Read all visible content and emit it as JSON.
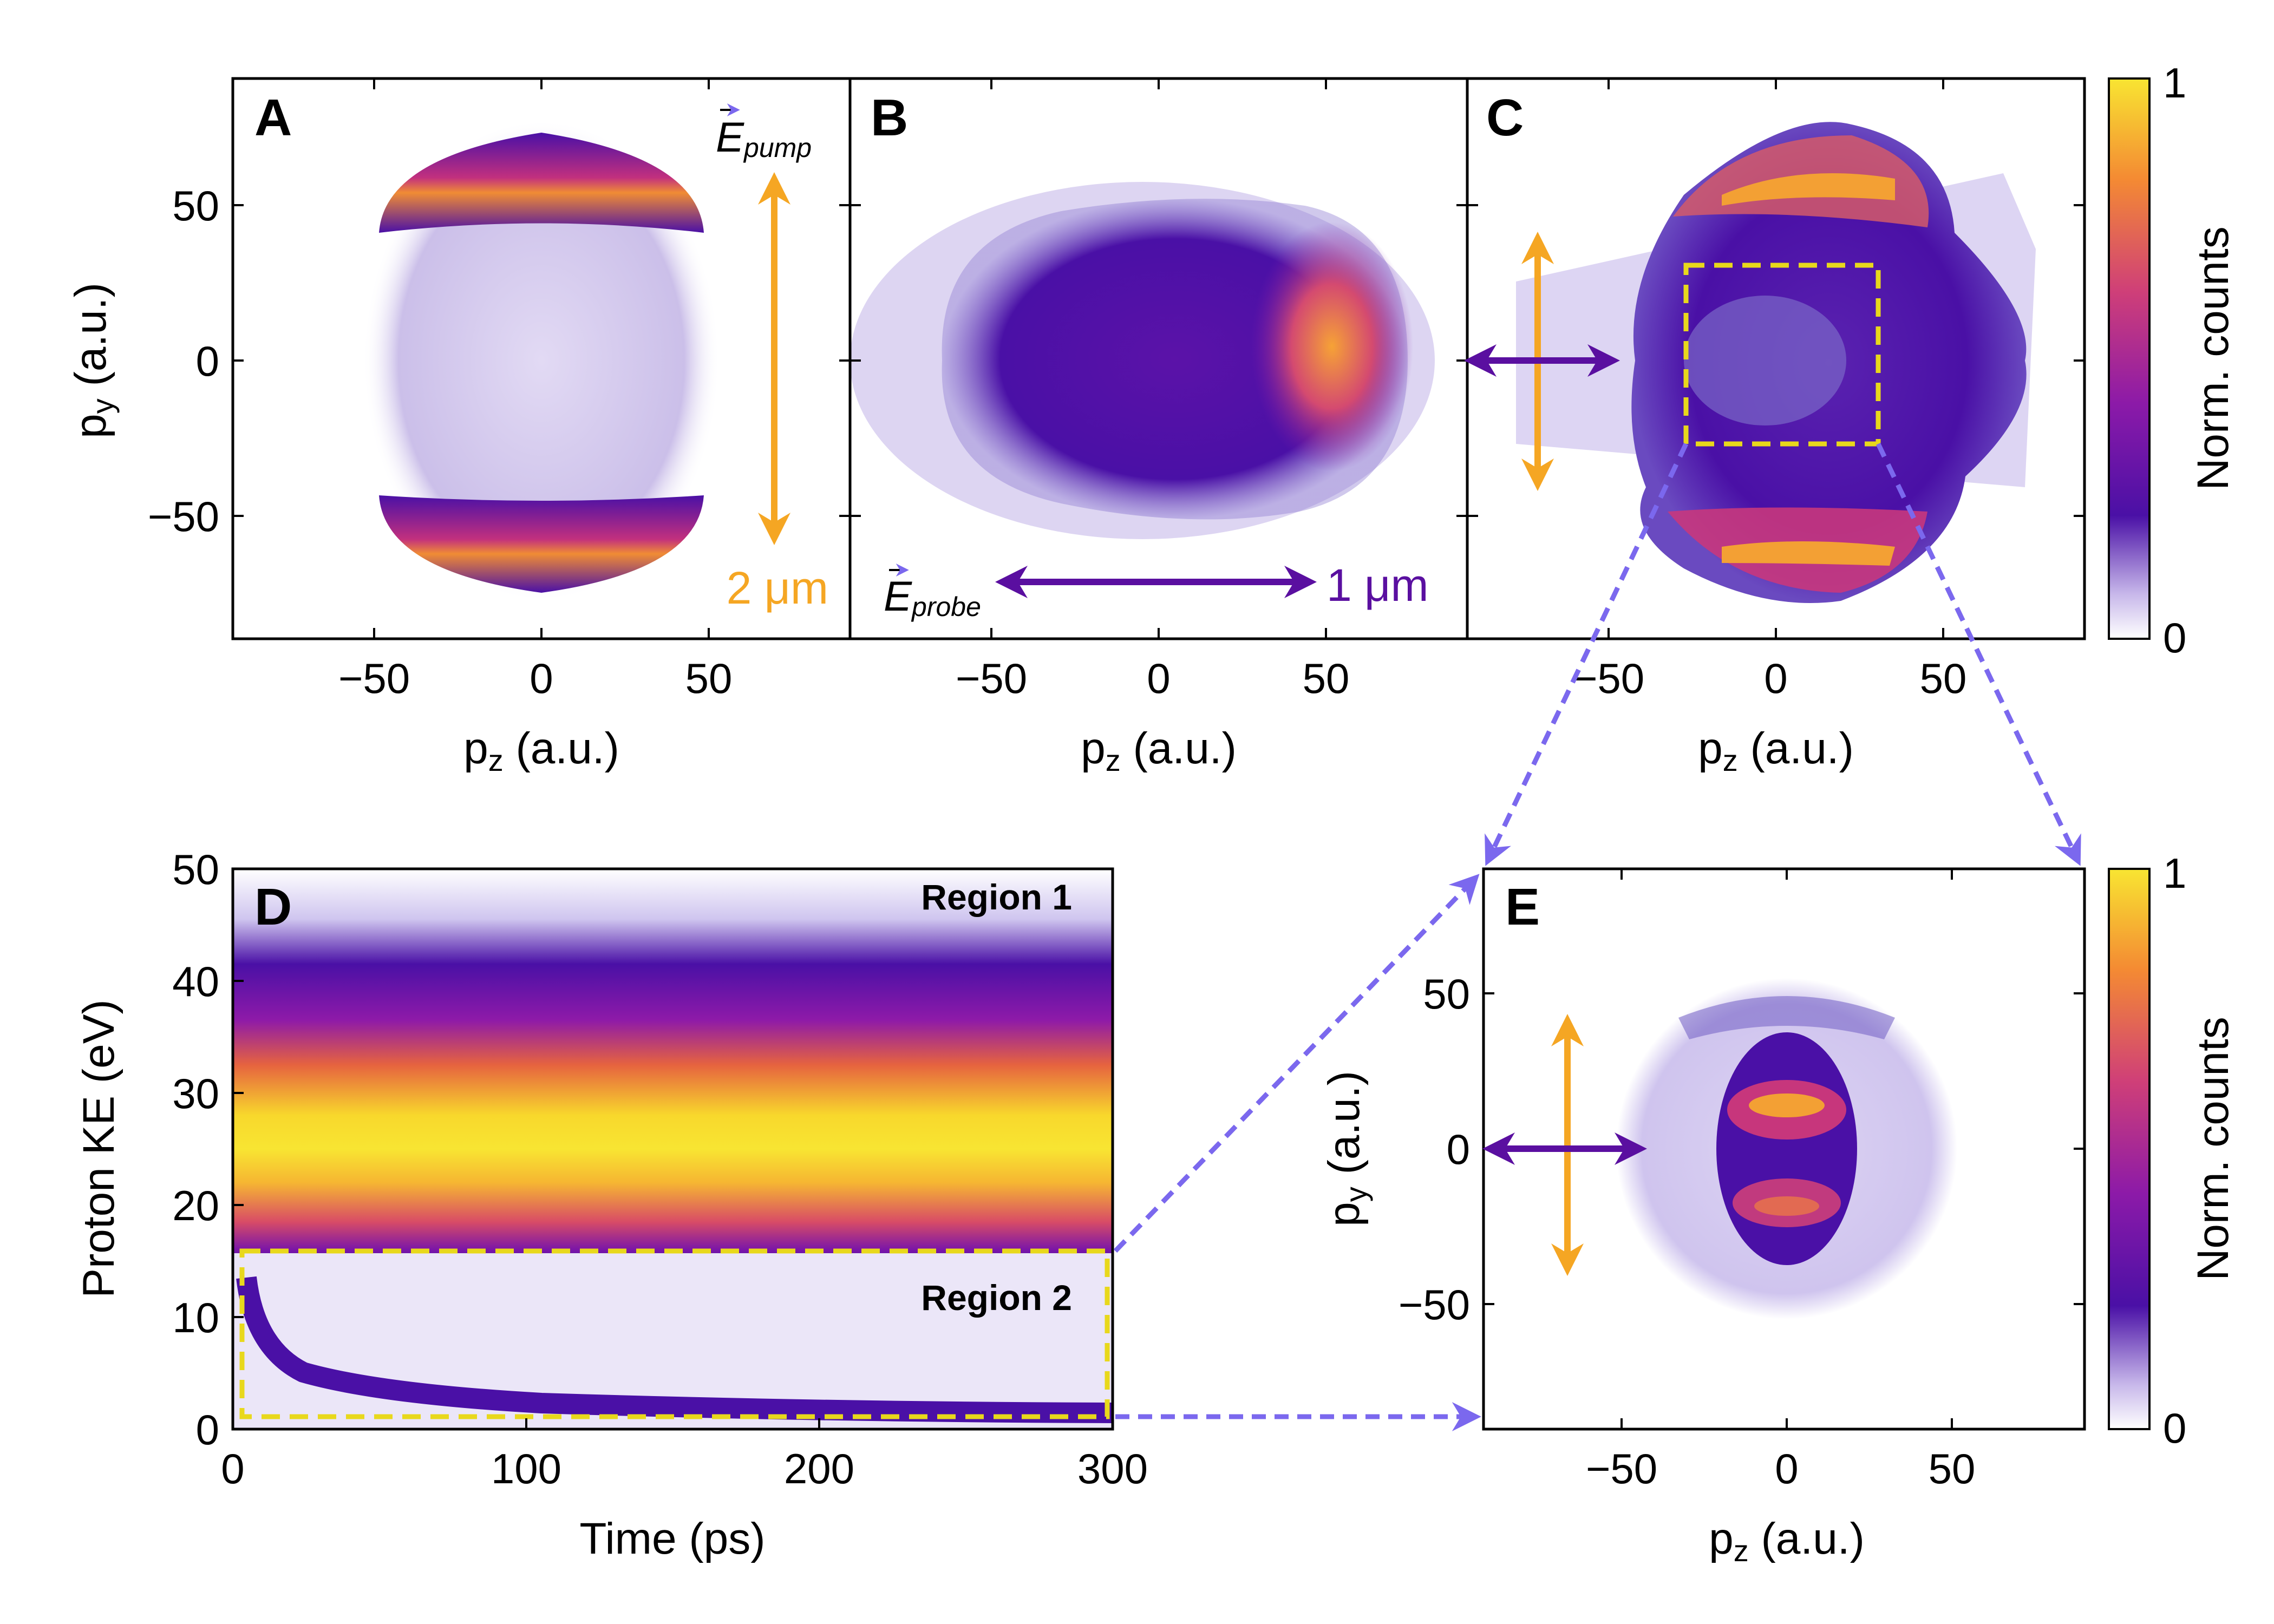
{
  "colors": {
    "pump": "#f5a623",
    "probe": "#5a0fa0",
    "roi": "#e8d81c",
    "connector": "#7b68ee",
    "cmap": [
      "#ffffff",
      "#c7b7ea",
      "#4a10a6",
      "#8c1aa8",
      "#cf3f78",
      "#f48a33",
      "#f8e532"
    ]
  },
  "chart_data": [
    {
      "panel": "A",
      "type": "heatmap",
      "xlabel_base": "p",
      "xlabel_sub": "z",
      "xlabel_unit": " (a.u.)",
      "ylabel_base": "p",
      "ylabel_sub": "y",
      "ylabel_unit": " (a.u.)",
      "xlim": [
        -90,
        90
      ],
      "ylim": [
        -90,
        90
      ],
      "xticks": [
        -50,
        0,
        50
      ],
      "yticks": [
        -50,
        0,
        50
      ],
      "tick_labels_x": [
        "−50",
        "0",
        "50"
      ],
      "tick_labels_y": [
        "−50",
        "0",
        "50"
      ],
      "description_annotations": {
        "field_label_base": "E",
        "field_label_sub": "pump",
        "wavelength": "2 μm"
      }
    },
    {
      "panel": "B",
      "type": "heatmap",
      "xlabel_base": "p",
      "xlabel_sub": "z",
      "xlabel_unit": " (a.u.)",
      "xlim": [
        -90,
        90
      ],
      "ylim": [
        -90,
        90
      ],
      "xticks": [
        -50,
        0,
        50
      ],
      "tick_labels_x": [
        "−50",
        "0",
        "50"
      ],
      "description_annotations": {
        "field_label_base": "E",
        "field_label_sub": "probe",
        "wavelength": "1 μm"
      }
    },
    {
      "panel": "C",
      "type": "heatmap",
      "xlabel_base": "p",
      "xlabel_sub": "z",
      "xlabel_unit": " (a.u.)",
      "xlim": [
        -90,
        90
      ],
      "ylim": [
        -90,
        90
      ],
      "xticks": [
        -50,
        0,
        50
      ],
      "tick_labels_x": [
        "−50",
        "0",
        "50"
      ],
      "roi": {
        "x": [
          -30,
          30
        ],
        "y": [
          -25,
          30
        ]
      },
      "colorbar": {
        "label": "Norm. counts",
        "min_label": "0",
        "max_label": "1"
      }
    },
    {
      "panel": "D",
      "type": "heatmap",
      "xlabel": "Time (ps)",
      "ylabel": "Proton KE (eV)",
      "xlim": [
        0,
        300
      ],
      "ylim": [
        0,
        50
      ],
      "xticks": [
        0,
        100,
        200,
        300
      ],
      "yticks": [
        0,
        10,
        20,
        30,
        40,
        50
      ],
      "tick_labels_x": [
        "0",
        "100",
        "200",
        "300"
      ],
      "tick_labels_y": [
        "0",
        "10",
        "20",
        "30",
        "40",
        "50"
      ],
      "regions": [
        {
          "name": "Region 1",
          "ke_center": 28
        },
        {
          "name": "Region 2",
          "ke_range": [
            1,
            16
          ],
          "time_range": [
            3,
            298
          ]
        }
      ]
    },
    {
      "panel": "E",
      "type": "heatmap",
      "xlabel_base": "p",
      "xlabel_sub": "z",
      "xlabel_unit": " (a.u.)",
      "ylabel_base": "p",
      "ylabel_sub": "y",
      "ylabel_unit": " (a.u.)",
      "xlim": [
        -90,
        90
      ],
      "ylim": [
        -90,
        90
      ],
      "xticks": [
        -50,
        0,
        50
      ],
      "yticks": [
        -50,
        0,
        50
      ],
      "tick_labels_x": [
        "−50",
        "0",
        "50"
      ],
      "tick_labels_y": [
        "−50",
        "0",
        "50"
      ],
      "colorbar": {
        "label": "Norm. counts",
        "min_label": "0",
        "max_label": "1"
      }
    }
  ]
}
